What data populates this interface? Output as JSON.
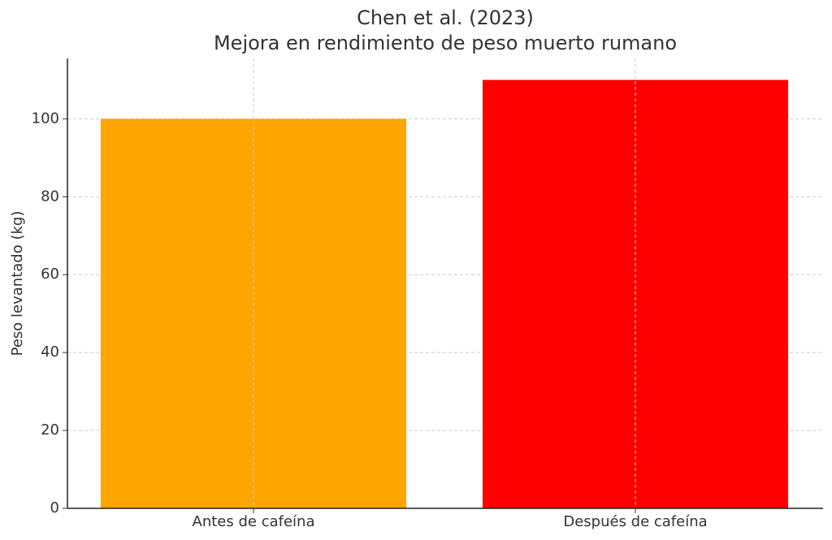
{
  "chart_data": {
    "type": "bar",
    "title": [
      "Chen et al. (2023)",
      "Mejora en rendimiento de peso muerto rumano"
    ],
    "ylabel": "Peso levantado (kg)",
    "categories": [
      "Antes de cafeína",
      "Después de cafeína"
    ],
    "values": [
      100,
      110
    ],
    "colors": [
      "#ffa500",
      "#ff0000"
    ],
    "ylim": [
      0,
      115.5
    ],
    "yticks": [
      0,
      20,
      40,
      60,
      80,
      100
    ],
    "grid": true
  }
}
